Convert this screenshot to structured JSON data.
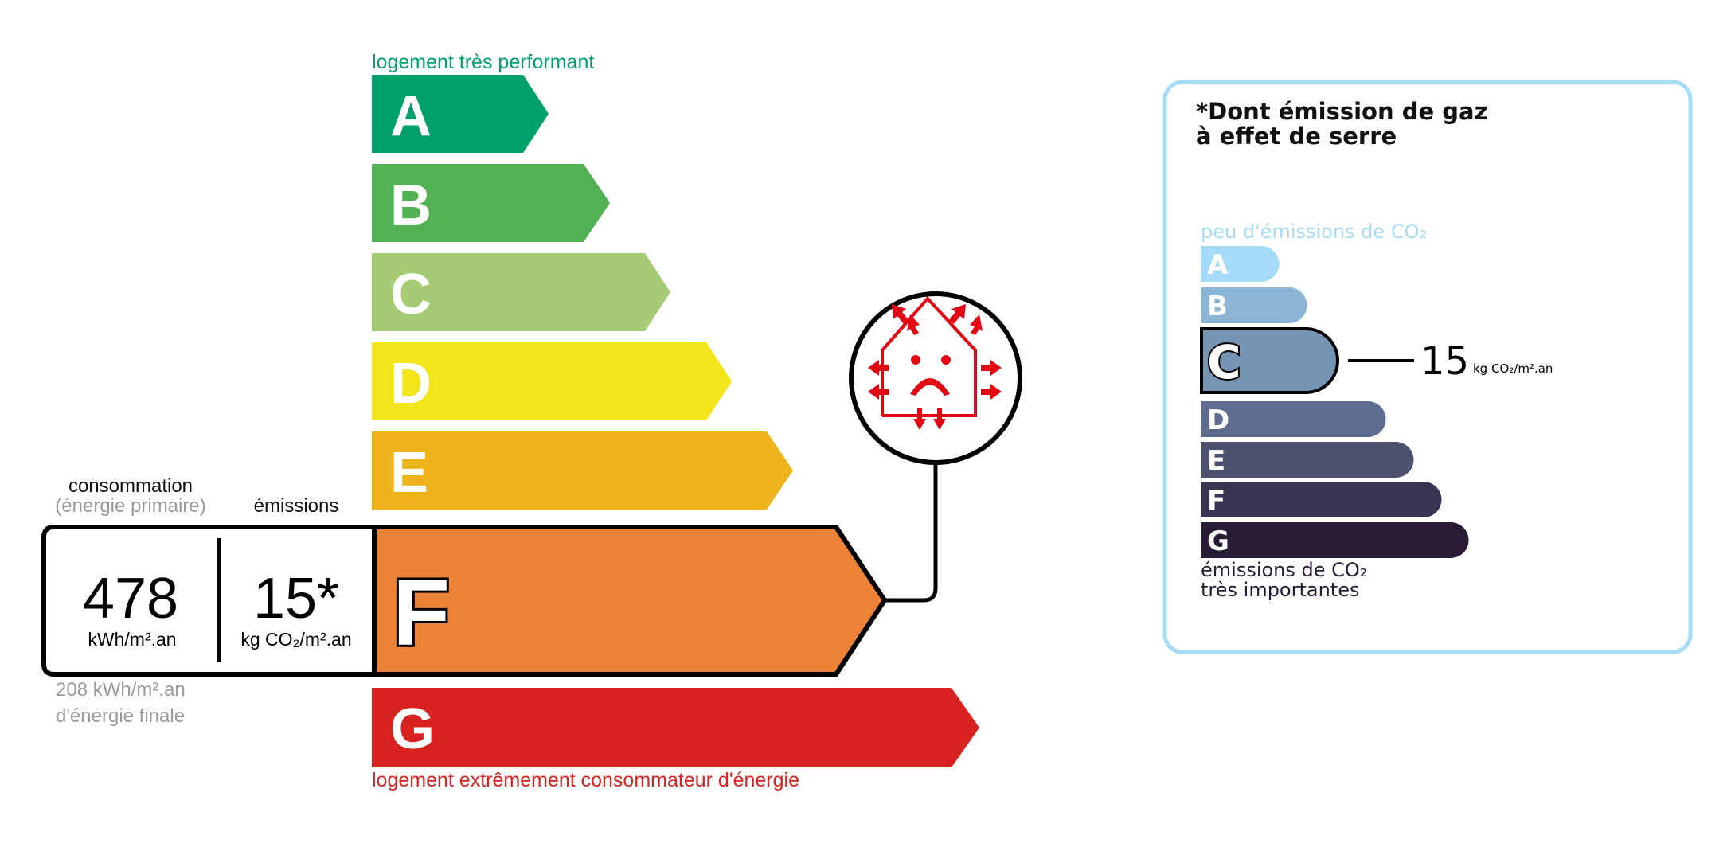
{
  "energy": {
    "top_label": "logement très performant",
    "bottom_label": "logement extrêmement consommateur d'énergie",
    "top_label_color": "#00a06d",
    "bottom_label_color": "#d7221f",
    "classes": [
      {
        "letter": "A",
        "color": "#00a06d"
      },
      {
        "letter": "B",
        "color": "#52b153"
      },
      {
        "letter": "C",
        "color": "#a5cc74"
      },
      {
        "letter": "D",
        "color": "#f2e61a"
      },
      {
        "letter": "E",
        "color": "#efb41b"
      },
      {
        "letter": "F",
        "color": "#eb8235"
      },
      {
        "letter": "G",
        "color": "#d7221f"
      }
    ],
    "current_class": "F",
    "consumption_heading": "consommation",
    "consumption_subheading": "(énergie primaire)",
    "emissions_heading": "émissions",
    "consumption_value": "478",
    "consumption_unit": "kWh/m².an",
    "emissions_value": "15*",
    "emissions_unit": "kg CO₂/m².an",
    "final_energy_value": "208 kWh/m².an",
    "final_energy_label": "d'énergie finale",
    "badge_icon": "sad-house-heat-loss-icon"
  },
  "ges": {
    "title_line1": "*Dont émission de gaz",
    "title_line2": "à effet de serre",
    "top_label": "peu d'émissions de CO₂",
    "bottom_label_line1": "émissions de CO₂",
    "bottom_label_line2": "très importantes",
    "border_color": "#a6dcf6",
    "classes": [
      {
        "letter": "A",
        "color": "#a4dbf8"
      },
      {
        "letter": "B",
        "color": "#8cb4d3"
      },
      {
        "letter": "C",
        "color": "#7695b2"
      },
      {
        "letter": "D",
        "color": "#5e6d8f"
      },
      {
        "letter": "E",
        "color": "#4d5170"
      },
      {
        "letter": "F",
        "color": "#393551"
      },
      {
        "letter": "G",
        "color": "#281b35"
      }
    ],
    "current_class": "C",
    "value": "15",
    "unit": "kg CO₂/m².an"
  }
}
